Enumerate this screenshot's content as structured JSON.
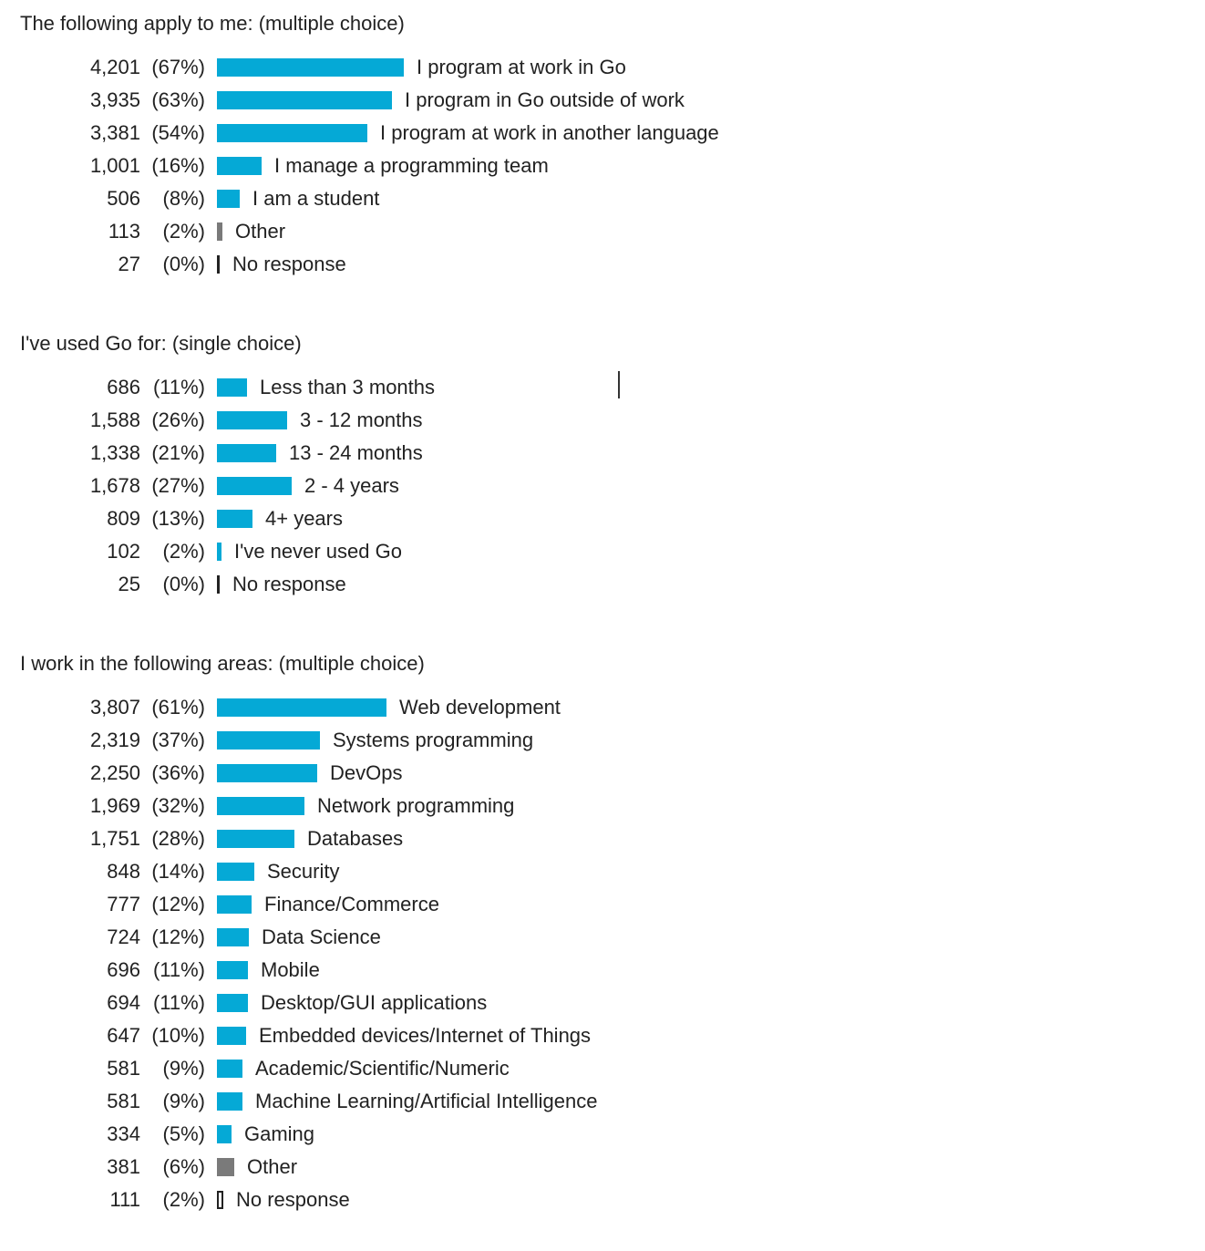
{
  "colors": {
    "bar": "#05a9d6",
    "other": "#7a7a7a",
    "no_response": "#222222"
  },
  "chart_data": [
    {
      "type": "bar",
      "orientation": "horizontal",
      "title": "The following apply to me: (multiple choice)",
      "categories": [
        "I program at work in Go",
        "I program in Go outside of work",
        "I program at work in another language",
        "I manage a programming team",
        "I am a student",
        "Other",
        "No response"
      ],
      "values": [
        4201,
        3935,
        3381,
        1001,
        506,
        113,
        27
      ],
      "counts": [
        "4,201",
        "3,935",
        "3,381",
        "1,001",
        "506",
        "113",
        "27"
      ],
      "percents": [
        "(67%)",
        "(63%)",
        "(54%)",
        "(16%)",
        "(8%)",
        "(2%)",
        "(0%)"
      ],
      "kinds": [
        "answer",
        "answer",
        "answer",
        "answer",
        "answer",
        "other",
        "none"
      ]
    },
    {
      "type": "bar",
      "orientation": "horizontal",
      "title": "I've used Go for: (single choice)",
      "categories": [
        "Less than 3 months",
        "3 - 12 months",
        "13 - 24 months",
        "2 - 4 years",
        "4+ years",
        "I've never used Go",
        "No response"
      ],
      "values": [
        686,
        1588,
        1338,
        1678,
        809,
        102,
        25
      ],
      "counts": [
        "686",
        "1,588",
        "1,338",
        "1,678",
        "809",
        "102",
        "25"
      ],
      "percents": [
        "(11%)",
        "(26%)",
        "(21%)",
        "(27%)",
        "(13%)",
        "(2%)",
        "(0%)"
      ],
      "kinds": [
        "answer",
        "answer",
        "answer",
        "answer",
        "answer",
        "answer",
        "none"
      ]
    },
    {
      "type": "bar",
      "orientation": "horizontal",
      "title": "I work in the following areas: (multiple choice)",
      "categories": [
        "Web development",
        "Systems programming",
        "DevOps",
        "Network programming",
        "Databases",
        "Security",
        "Finance/Commerce",
        "Data Science",
        "Mobile",
        "Desktop/GUI applications",
        "Embedded devices/Internet of Things",
        "Academic/Scientific/Numeric",
        "Machine Learning/Artificial Intelligence",
        "Gaming",
        "Other",
        "No response"
      ],
      "values": [
        3807,
        2319,
        2250,
        1969,
        1751,
        848,
        777,
        724,
        696,
        694,
        647,
        581,
        581,
        334,
        381,
        111
      ],
      "counts": [
        "3,807",
        "2,319",
        "2,250",
        "1,969",
        "1,751",
        "848",
        "777",
        "724",
        "696",
        "694",
        "647",
        "581",
        "581",
        "334",
        "381",
        "111"
      ],
      "percents": [
        "(61%)",
        "(37%)",
        "(36%)",
        "(32%)",
        "(28%)",
        "(14%)",
        "(12%)",
        "(12%)",
        "(11%)",
        "(11%)",
        "(10%)",
        "(9%)",
        "(9%)",
        "(5%)",
        "(6%)",
        "(2%)"
      ],
      "kinds": [
        "answer",
        "answer",
        "answer",
        "answer",
        "answer",
        "answer",
        "answer",
        "answer",
        "answer",
        "answer",
        "answer",
        "answer",
        "answer",
        "answer",
        "other",
        "none-outline"
      ]
    }
  ]
}
